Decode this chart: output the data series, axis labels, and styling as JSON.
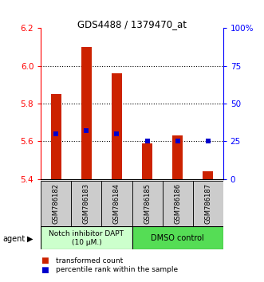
{
  "title": "GDS4488 / 1379470_at",
  "samples": [
    "GSM786182",
    "GSM786183",
    "GSM786184",
    "GSM786185",
    "GSM786186",
    "GSM786187"
  ],
  "bar_bottoms": [
    5.4,
    5.4,
    5.4,
    5.4,
    5.4,
    5.4
  ],
  "bar_tops": [
    5.85,
    6.1,
    5.96,
    5.59,
    5.63,
    5.44
  ],
  "percentile_ranks": [
    30,
    32,
    30,
    25,
    25,
    25
  ],
  "ylim_left": [
    5.4,
    6.2
  ],
  "ylim_right": [
    0,
    100
  ],
  "yticks_left": [
    5.4,
    5.6,
    5.8,
    6.0,
    6.2
  ],
  "yticks_right": [
    0,
    25,
    50,
    75,
    100
  ],
  "ytick_labels_right": [
    "0",
    "25",
    "50",
    "75",
    "100%"
  ],
  "bar_color": "#cc2200",
  "marker_color": "#0000cc",
  "group1_label": "Notch inhibitor DAPT\n(10 μM.)",
  "group2_label": "DMSO control",
  "group1_color": "#ccffcc",
  "group2_color": "#55dd55",
  "group1_indices": [
    0,
    1,
    2
  ],
  "group2_indices": [
    3,
    4,
    5
  ],
  "legend_bar_label": "transformed count",
  "legend_marker_label": "percentile rank within the sample",
  "agent_label": "agent",
  "grid_yticks": [
    5.6,
    5.8,
    6.0
  ],
  "label_bg_color": "#cccccc",
  "bar_width": 0.35
}
